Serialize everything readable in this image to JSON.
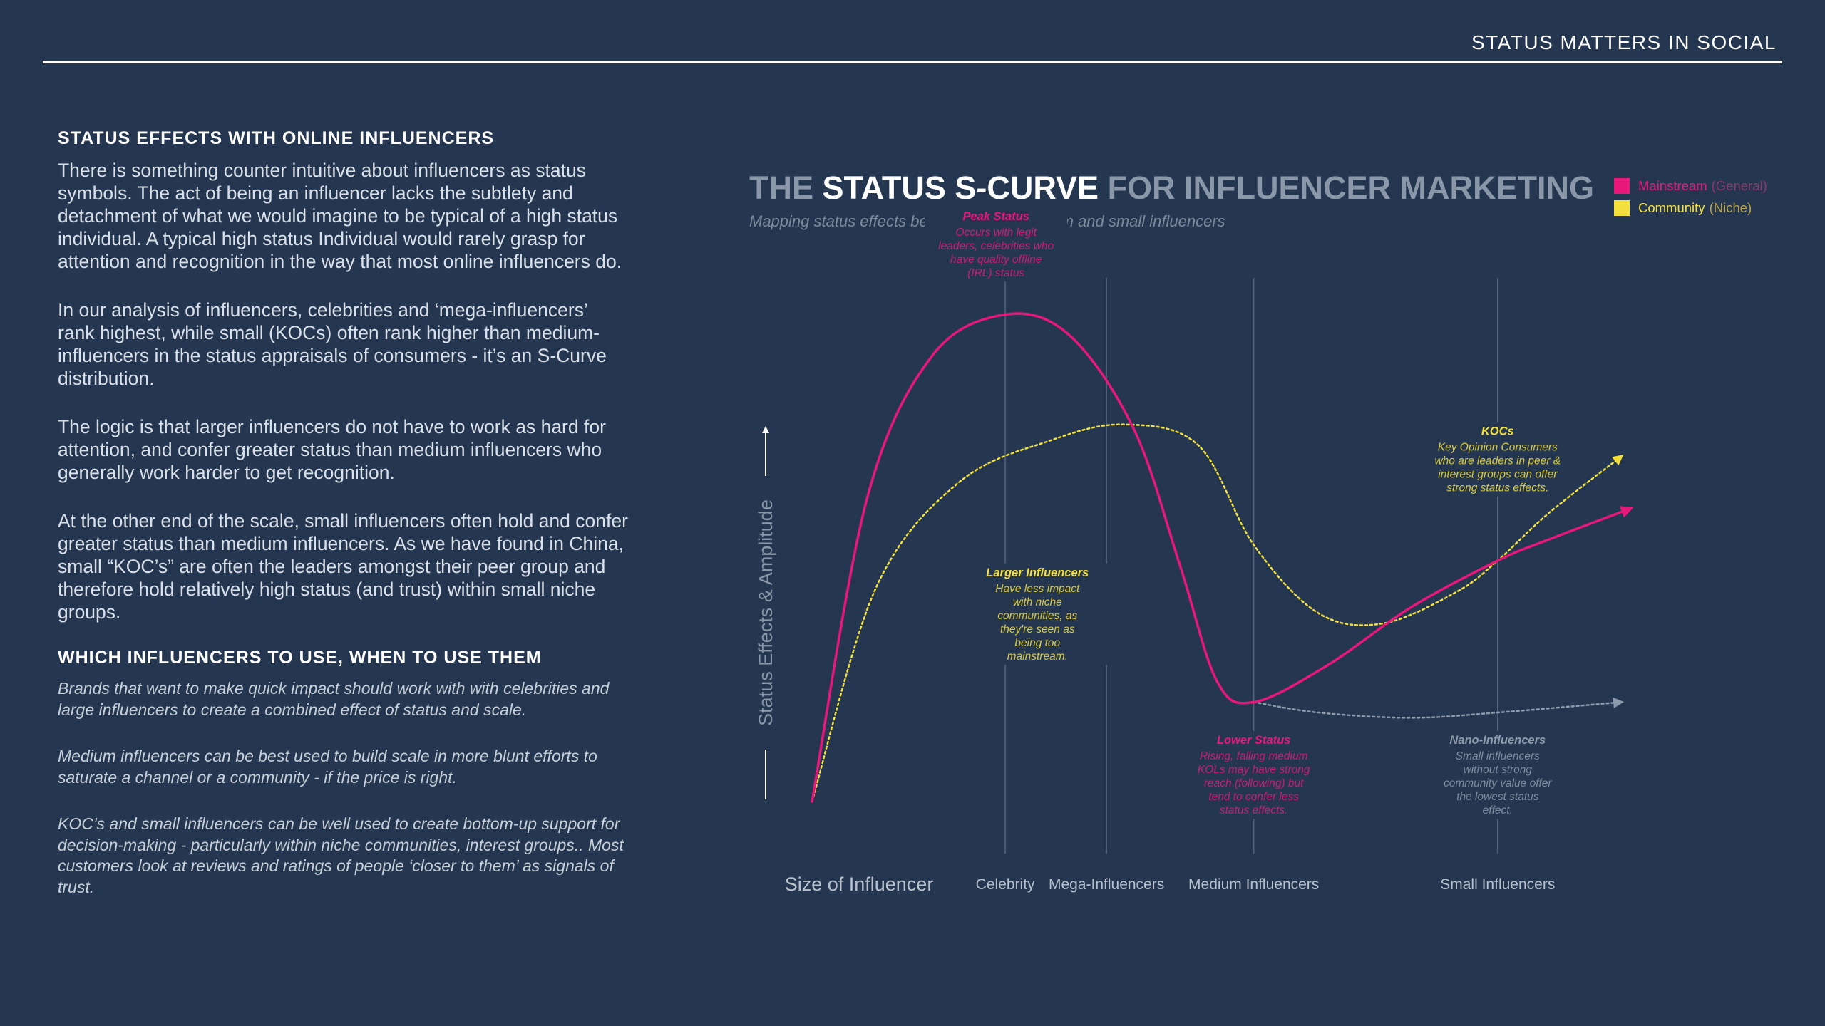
{
  "header": {
    "title": "STATUS MATTERS IN SOCIAL"
  },
  "left": {
    "heading1": "STATUS EFFECTS WITH ONLINE INFLUENCERS",
    "paragraphs": [
      "There is something counter intuitive about influencers as status symbols. The act of being an influencer lacks the subtlety and detachment of what we would imagine to be typical of a high status individual. A typical high status Individual would rarely grasp for attention and recognition in the way that most online influencers do.",
      "In our analysis of influencers, celebrities and ‘mega-influencers’ rank highest, while small (KOCs) often rank higher than medium-influencers in the status appraisals of consumers - it’s an S-Curve distribution.",
      "The logic is that larger influencers do not have to work as hard for attention, and confer greater status than medium influencers who generally work harder to get recognition.",
      "At the other end of the scale, small influencers often hold and confer greater status than medium influencers. As we have found in China, small “KOC’s” are often the leaders amongst their peer group and therefore hold relatively high status (and trust) within small niche groups."
    ],
    "heading2": "WHICH INFLUENCERS TO USE, WHEN TO USE THEM",
    "italics": [
      "Brands that want to make quick impact should work with with celebrities and large influencers to create a combined effect of status and scale.",
      "Medium influencers can be best used to build scale in more blunt efforts to saturate a channel or a community - if the price is right.",
      "KOC’s and small influencers can be well used to create bottom-up support for decision-making - particularly within niche communities, interest groups.. Most customers look at reviews and ratings of people ‘closer to them’ as signals of trust."
    ]
  },
  "chart_data": {
    "type": "line",
    "title_pre": "THE ",
    "title_highlight": "STATUS S-CURVE",
    "title_post": " FOR INFLUENCER MARKETING",
    "subtitle": "Mapping status effects between large, medium and small influencers",
    "xlabel": "Size of Influencer",
    "ylabel": "Status Effects & Amplitude",
    "categories": [
      "Celebrity",
      "Mega-Influencers",
      "Medium Influencers",
      "Small Influencers"
    ],
    "xlim": [
      0,
      10
    ],
    "ylim": [
      0,
      10
    ],
    "category_positions": [
      2.1,
      3.2,
      4.8,
      7.45
    ],
    "legend": [
      {
        "label": "Mainstream",
        "sub": "(General)",
        "color": "#e8177a"
      },
      {
        "label": "Community",
        "sub": "(Niche)",
        "color": "#f4e03c"
      }
    ],
    "series": [
      {
        "name": "Mainstream (General)",
        "color": "#e8177a",
        "style": "solid",
        "points": [
          [
            0,
            0
          ],
          [
            0.6,
            5.8
          ],
          [
            1.3,
            8.5
          ],
          [
            2.1,
            9.3
          ],
          [
            2.8,
            8.9
          ],
          [
            3.5,
            7.1
          ],
          [
            4.0,
            4.5
          ],
          [
            4.4,
            2.3
          ],
          [
            4.8,
            1.9
          ],
          [
            5.6,
            2.6
          ],
          [
            6.5,
            3.7
          ],
          [
            7.45,
            4.6
          ],
          [
            8.0,
            5.0
          ],
          [
            8.9,
            5.6
          ]
        ]
      },
      {
        "name": "Community (Niche)",
        "color": "#f4e03c",
        "style": "dotted",
        "points": [
          [
            0,
            0
          ],
          [
            0.7,
            4.1
          ],
          [
            1.6,
            6.1
          ],
          [
            2.6,
            6.9
          ],
          [
            3.4,
            7.2
          ],
          [
            4.2,
            6.8
          ],
          [
            4.8,
            4.9
          ],
          [
            5.5,
            3.6
          ],
          [
            6.2,
            3.4
          ],
          [
            7.0,
            4.0
          ],
          [
            7.45,
            4.6
          ],
          [
            8.0,
            5.5
          ],
          [
            8.8,
            6.6
          ]
        ]
      },
      {
        "name": "Nano baseline",
        "color": "#8d9aab",
        "style": "dotted",
        "points": [
          [
            4.8,
            1.9
          ],
          [
            5.5,
            1.7
          ],
          [
            6.5,
            1.6
          ],
          [
            7.45,
            1.7
          ],
          [
            8.8,
            1.9
          ]
        ]
      }
    ],
    "annotations": [
      {
        "title": "Peak Status",
        "text": [
          "Occurs with legit",
          "leaders, celebrities who",
          "have quality offline",
          "(IRL) status"
        ],
        "x": 2.0,
        "y": 11.1,
        "color": "#e8177a"
      },
      {
        "title": "KOCs",
        "text": [
          "Key Opinion Consumers",
          "who are leaders in peer &",
          "interest groups can offer",
          "strong status effects."
        ],
        "x": 7.45,
        "y": 7.0,
        "color": "#f4e03c"
      },
      {
        "title": "Larger Influencers",
        "text": [
          "Have less impact",
          "with niche",
          "communities, as",
          "they're seen as",
          "being too",
          "mainstream."
        ],
        "x": 2.45,
        "y": 4.3,
        "color": "#f4e03c"
      },
      {
        "title": "Lower Status",
        "text": [
          "Rising, falling medium",
          "KOLs may have strong",
          "reach (following) but",
          "tend to confer less",
          "status effects."
        ],
        "x": 4.8,
        "y": 1.1,
        "color": "#e8177a"
      },
      {
        "title": "Nano-Influencers",
        "text": [
          "Small influencers",
          "without strong",
          "community value offer",
          "the lowest status",
          "effect."
        ],
        "x": 7.45,
        "y": 1.1,
        "color": "#8d9aab"
      }
    ]
  }
}
